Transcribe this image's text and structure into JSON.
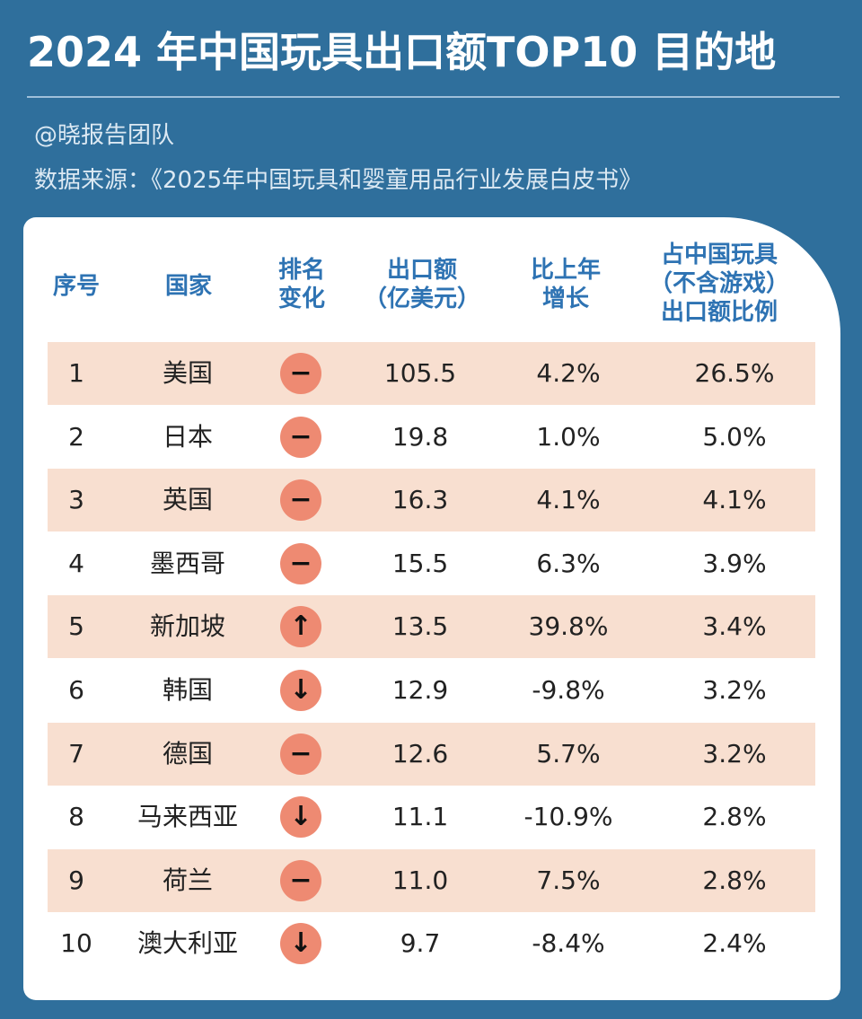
{
  "title": "2024 年中国玩具出口额TOP10 目的地",
  "author": "@晓报告团队",
  "source": "数据来源：《2025年中国玩具和婴童用品行业发展白皮书》",
  "headers": {
    "rank": "序号",
    "country": "国家",
    "change": [
      "排名",
      "变化"
    ],
    "amount": [
      "出口额",
      "（亿美元）"
    ],
    "growth": [
      "比上年",
      "增长"
    ],
    "share": [
      "占中国玩具",
      "（不含游戏）",
      "出口额比例"
    ]
  },
  "colors": {
    "background": "#2f6f9c",
    "header_text": "#2e73b3",
    "row_shade": "#f8dfd0",
    "badge": "#ee8a72"
  },
  "change_icons": {
    "same": "dash-icon",
    "up": "arrow-up-icon",
    "down": "arrow-down-icon"
  },
  "chart_data": {
    "type": "table",
    "columns": [
      "序号",
      "国家",
      "排名变化",
      "出口额（亿美元）",
      "比上年增长",
      "占中国玩具（不含游戏）出口额比例"
    ],
    "rows": [
      {
        "rank": "1",
        "country": "美国",
        "change": "same",
        "amount": "105.5",
        "growth": "4.2%",
        "share": "26.5%"
      },
      {
        "rank": "2",
        "country": "日本",
        "change": "same",
        "amount": "19.8",
        "growth": "1.0%",
        "share": "5.0%"
      },
      {
        "rank": "3",
        "country": "英国",
        "change": "same",
        "amount": "16.3",
        "growth": "4.1%",
        "share": "4.1%"
      },
      {
        "rank": "4",
        "country": "墨西哥",
        "change": "same",
        "amount": "15.5",
        "growth": "6.3%",
        "share": "3.9%"
      },
      {
        "rank": "5",
        "country": "新加坡",
        "change": "up",
        "amount": "13.5",
        "growth": "39.8%",
        "share": "3.4%"
      },
      {
        "rank": "6",
        "country": "韩国",
        "change": "down",
        "amount": "12.9",
        "growth": "-9.8%",
        "share": "3.2%"
      },
      {
        "rank": "7",
        "country": "德国",
        "change": "same",
        "amount": "12.6",
        "growth": "5.7%",
        "share": "3.2%"
      },
      {
        "rank": "8",
        "country": "马来西亚",
        "change": "down",
        "amount": "11.1",
        "growth": "-10.9%",
        "share": "2.8%"
      },
      {
        "rank": "9",
        "country": "荷兰",
        "change": "same",
        "amount": "11.0",
        "growth": "7.5%",
        "share": "2.8%"
      },
      {
        "rank": "10",
        "country": "澳大利亚",
        "change": "down",
        "amount": "9.7",
        "growth": "-8.4%",
        "share": "2.4%"
      }
    ]
  }
}
